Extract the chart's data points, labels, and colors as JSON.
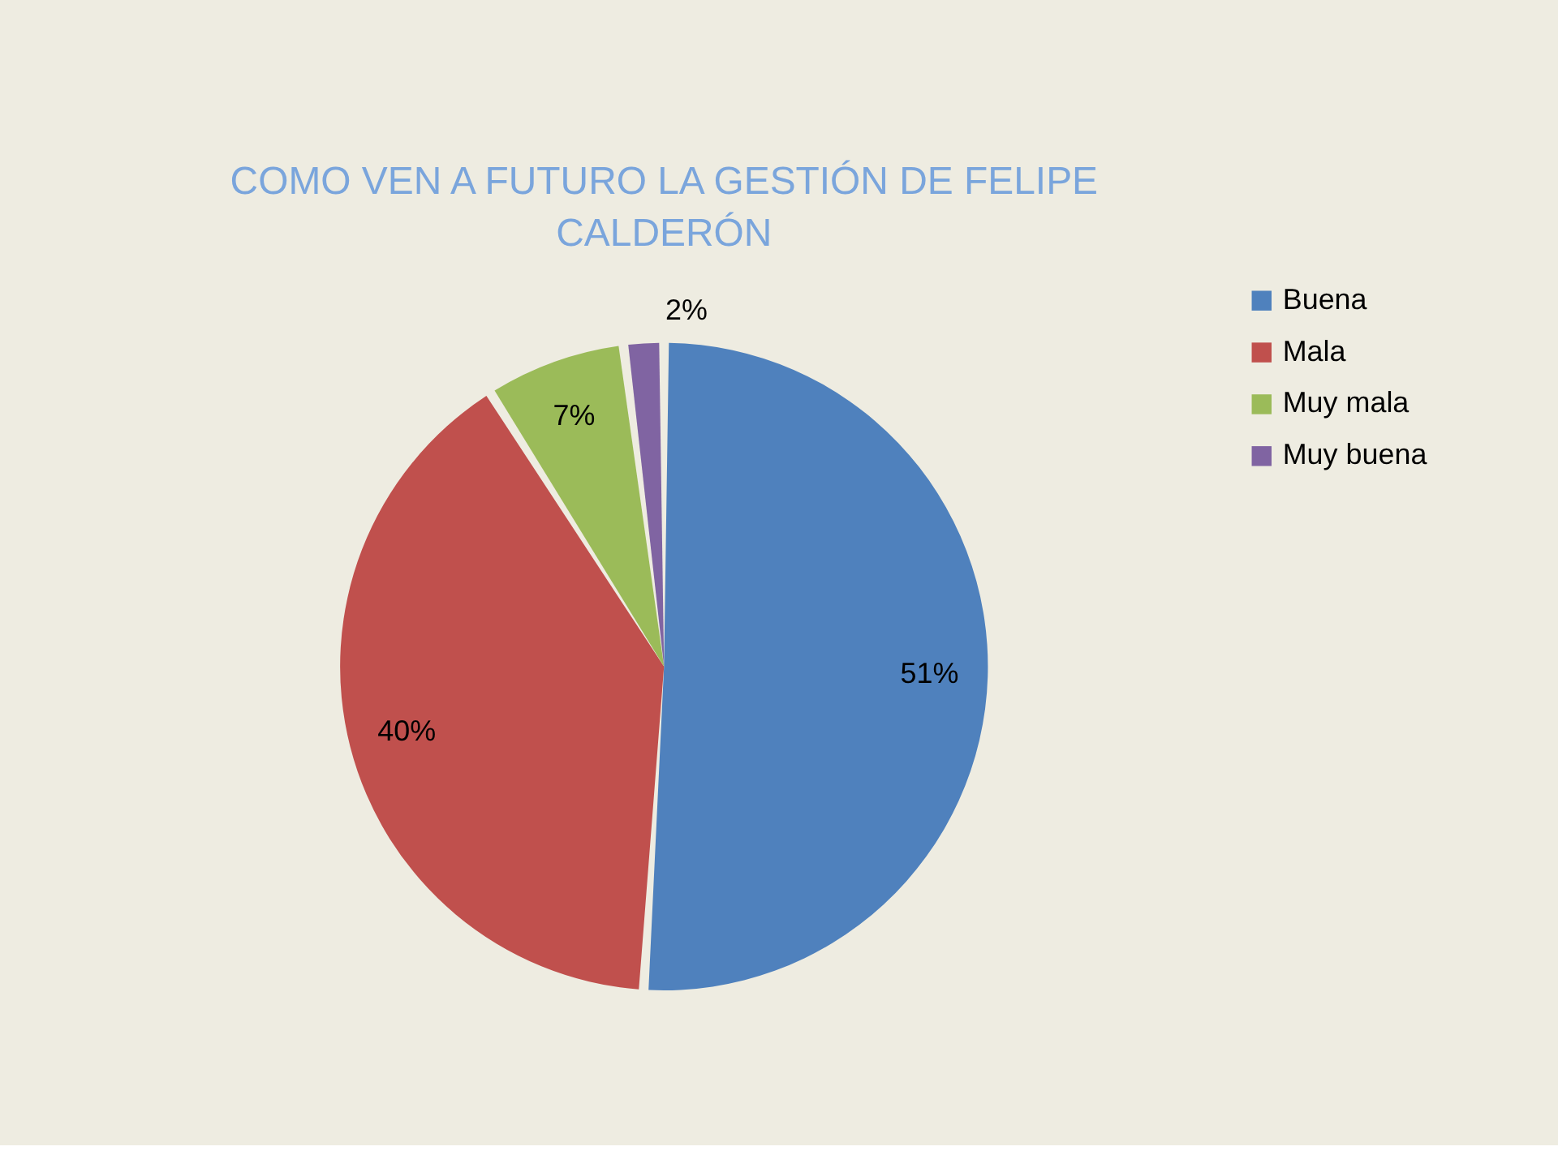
{
  "chart_data": {
    "type": "pie",
    "title": "COMO VEN A FUTURO LA GESTIÓN DE FELIPE CALDERÓN",
    "categories": [
      "Buena",
      "Mala",
      "Muy mala",
      "Muy buena"
    ],
    "values": [
      51,
      40,
      7,
      2
    ],
    "colors": [
      "#4f81bd",
      "#c0504d",
      "#9bbb59",
      "#8064a2"
    ],
    "value_labels": [
      "51%",
      "40%",
      "7%",
      "2%"
    ],
    "legend": "right"
  }
}
